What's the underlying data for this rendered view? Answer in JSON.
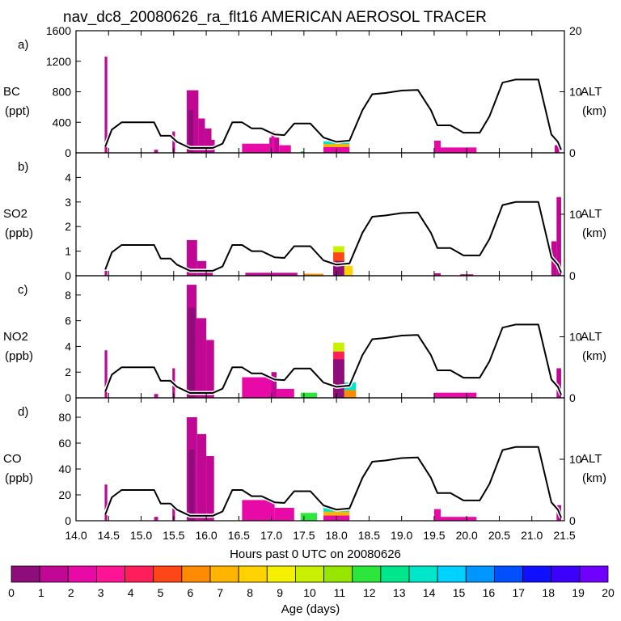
{
  "chart_data": {
    "type": "bar",
    "title": "nav_dc8_20080626_ra_flt16 AMERICAN AEROSOL TRACER",
    "xlabel": "Hours past 0 UTC on 20080626",
    "xlim": [
      14.0,
      21.5
    ],
    "xticks": [
      "14.0",
      "14.5",
      "15.0",
      "15.5",
      "16.0",
      "16.5",
      "17.0",
      "17.5",
      "18.0",
      "18.5",
      "19.0",
      "19.5",
      "20.0",
      "20.5",
      "21.0",
      "21.5"
    ],
    "altitude_axis": {
      "label": "ALT",
      "units": "(km)",
      "range": [
        0,
        20
      ],
      "ticks": [
        "0",
        "10",
        "20"
      ]
    },
    "altitude_km": [
      [
        14.45,
        1
      ],
      [
        14.55,
        3.8
      ],
      [
        14.7,
        5
      ],
      [
        15.2,
        5
      ],
      [
        15.3,
        2.8
      ],
      [
        15.45,
        2.8
      ],
      [
        15.55,
        1.8
      ],
      [
        15.75,
        0.8
      ],
      [
        16.1,
        0.8
      ],
      [
        16.25,
        1.5
      ],
      [
        16.4,
        5
      ],
      [
        16.55,
        5
      ],
      [
        16.7,
        4
      ],
      [
        16.85,
        4
      ],
      [
        17.05,
        3
      ],
      [
        17.2,
        2.9
      ],
      [
        17.35,
        4.8
      ],
      [
        17.6,
        4.8
      ],
      [
        17.8,
        2.5
      ],
      [
        18.0,
        1.8
      ],
      [
        18.2,
        2
      ],
      [
        18.4,
        7
      ],
      [
        18.55,
        9.6
      ],
      [
        18.75,
        9.8
      ],
      [
        19.0,
        10.2
      ],
      [
        19.25,
        10.3
      ],
      [
        19.45,
        7
      ],
      [
        19.55,
        4.5
      ],
      [
        19.75,
        4.5
      ],
      [
        19.95,
        3.3
      ],
      [
        20.2,
        3.3
      ],
      [
        20.35,
        6
      ],
      [
        20.55,
        11.5
      ],
      [
        20.75,
        12
      ],
      [
        21.1,
        12
      ],
      [
        21.3,
        3
      ],
      [
        21.4,
        1.8
      ],
      [
        21.45,
        0.5
      ]
    ],
    "colorbar": {
      "label": "Age (days)",
      "ticks": [
        "0",
        "1",
        "2",
        "3",
        "4",
        "5",
        "6",
        "7",
        "8",
        "9",
        "10",
        "11",
        "12",
        "13",
        "14",
        "15",
        "16",
        "17",
        "18",
        "19",
        "20"
      ],
      "colors": [
        "#8e0d7a",
        "#c00895",
        "#e80aa6",
        "#ff1493",
        "#ff1e5a",
        "#ff4616",
        "#ff8c00",
        "#ffb400",
        "#ffd200",
        "#f4f000",
        "#c8f000",
        "#96e600",
        "#2ce63c",
        "#00e68c",
        "#00e6c8",
        "#00d2ff",
        "#0096ff",
        "#0050ff",
        "#1010ff",
        "#3c00ff",
        "#7000ff"
      ]
    },
    "panels": [
      {
        "letter": "a)",
        "species": "BC",
        "units": "(ppt)",
        "ylim": [
          0,
          1600
        ],
        "yticks": [
          "0",
          "400",
          "800",
          "1200",
          "1600"
        ],
        "bars": [
          {
            "x0": 14.44,
            "x1": 14.48,
            "v": 1260,
            "c": 1
          },
          {
            "x0": 15.2,
            "x1": 15.26,
            "v": 40,
            "c": 1
          },
          {
            "x0": 15.48,
            "x1": 15.52,
            "v": 280,
            "c": 1
          },
          {
            "x0": 15.7,
            "x1": 15.88,
            "v": 820,
            "c": 1
          },
          {
            "x0": 15.73,
            "x1": 15.8,
            "v": 560,
            "c": 0
          },
          {
            "x0": 15.88,
            "x1": 15.98,
            "v": 450,
            "c": 1
          },
          {
            "x0": 15.98,
            "x1": 16.08,
            "v": 320,
            "c": 1
          },
          {
            "x0": 16.08,
            "x1": 16.13,
            "v": 170,
            "c": 1
          },
          {
            "x0": 16.55,
            "x1": 16.97,
            "v": 120,
            "c": 2
          },
          {
            "x0": 16.97,
            "x1": 17.12,
            "v": 200,
            "c": 1
          },
          {
            "x0": 17.0,
            "x1": 17.05,
            "v": 280,
            "c": 2
          },
          {
            "x0": 17.12,
            "x1": 17.3,
            "v": 100,
            "c": 2
          },
          {
            "x0": 17.45,
            "x1": 17.5,
            "v": 20,
            "c": 12
          },
          {
            "x0": 17.8,
            "x1": 18.2,
            "v": 150,
            "c": 14
          },
          {
            "x0": 17.8,
            "x1": 18.2,
            "v": 115,
            "c": 7
          },
          {
            "x0": 17.8,
            "x1": 18.2,
            "v": 75,
            "c": 2
          },
          {
            "x0": 19.5,
            "x1": 19.6,
            "v": 160,
            "c": 2
          },
          {
            "x0": 19.6,
            "x1": 20.15,
            "v": 70,
            "c": 2
          },
          {
            "x0": 21.35,
            "x1": 21.42,
            "v": 100,
            "c": 1
          }
        ]
      },
      {
        "letter": "b)",
        "species": "SO2",
        "units": "(ppb)",
        "ylim": [
          0,
          5
        ],
        "yticks": [
          "0",
          "1",
          "2",
          "3",
          "4"
        ],
        "bars": [
          {
            "x0": 14.44,
            "x1": 14.48,
            "v": 0.2,
            "c": 1
          },
          {
            "x0": 15.7,
            "x1": 15.86,
            "v": 1.45,
            "c": 1
          },
          {
            "x0": 15.86,
            "x1": 16.0,
            "v": 0.6,
            "c": 1
          },
          {
            "x0": 16.0,
            "x1": 16.1,
            "v": 0.25,
            "c": 1
          },
          {
            "x0": 16.6,
            "x1": 17.4,
            "v": 0.12,
            "c": 1
          },
          {
            "x0": 17.5,
            "x1": 17.8,
            "v": 0.08,
            "c": 6
          },
          {
            "x0": 17.95,
            "x1": 18.12,
            "v": 1.2,
            "c": 10
          },
          {
            "x0": 17.95,
            "x1": 18.12,
            "v": 0.95,
            "c": 5
          },
          {
            "x0": 17.95,
            "x1": 18.12,
            "v": 0.6,
            "c": 0
          },
          {
            "x0": 18.12,
            "x1": 18.25,
            "v": 0.4,
            "c": 8
          },
          {
            "x0": 19.5,
            "x1": 19.6,
            "v": 0.1,
            "c": 1
          },
          {
            "x0": 19.9,
            "x1": 20.1,
            "v": 0.06,
            "c": 1
          },
          {
            "x0": 21.38,
            "x1": 21.45,
            "v": 3.2,
            "c": 1
          },
          {
            "x0": 21.3,
            "x1": 21.38,
            "v": 1.4,
            "c": 1
          }
        ]
      },
      {
        "letter": "c)",
        "species": "NO2",
        "units": "(ppb)",
        "ylim": [
          0,
          9.5
        ],
        "yticks": [
          "0",
          "2",
          "4",
          "6",
          "8"
        ],
        "bars": [
          {
            "x0": 14.44,
            "x1": 14.48,
            "v": 3.7,
            "c": 1
          },
          {
            "x0": 15.2,
            "x1": 15.26,
            "v": 0.3,
            "c": 1
          },
          {
            "x0": 15.48,
            "x1": 15.52,
            "v": 2.3,
            "c": 1
          },
          {
            "x0": 15.7,
            "x1": 15.85,
            "v": 8.8,
            "c": 1
          },
          {
            "x0": 15.72,
            "x1": 15.83,
            "v": 7.0,
            "c": 0
          },
          {
            "x0": 15.85,
            "x1": 16.0,
            "v": 6.2,
            "c": 1
          },
          {
            "x0": 16.0,
            "x1": 16.12,
            "v": 4.5,
            "c": 1
          },
          {
            "x0": 16.55,
            "x1": 17.05,
            "v": 1.6,
            "c": 2
          },
          {
            "x0": 17.0,
            "x1": 17.08,
            "v": 2.0,
            "c": 1
          },
          {
            "x0": 17.08,
            "x1": 17.35,
            "v": 0.7,
            "c": 2
          },
          {
            "x0": 17.45,
            "x1": 17.7,
            "v": 0.4,
            "c": 12
          },
          {
            "x0": 17.95,
            "x1": 18.12,
            "v": 4.3,
            "c": 10
          },
          {
            "x0": 17.95,
            "x1": 18.12,
            "v": 3.6,
            "c": 4
          },
          {
            "x0": 17.95,
            "x1": 18.12,
            "v": 3.0,
            "c": 0
          },
          {
            "x0": 18.12,
            "x1": 18.3,
            "v": 1.2,
            "c": 14
          },
          {
            "x0": 18.12,
            "x1": 18.3,
            "v": 0.6,
            "c": 6
          },
          {
            "x0": 19.5,
            "x1": 20.15,
            "v": 0.4,
            "c": 2
          },
          {
            "x0": 21.38,
            "x1": 21.45,
            "v": 2.3,
            "c": 1
          }
        ]
      },
      {
        "letter": "d)",
        "species": "CO",
        "units": "(ppb)",
        "ylim": [
          0,
          95
        ],
        "yticks": [
          "0",
          "20",
          "40",
          "60",
          "80"
        ],
        "bars": [
          {
            "x0": 14.44,
            "x1": 14.48,
            "v": 28,
            "c": 1
          },
          {
            "x0": 15.2,
            "x1": 15.26,
            "v": 3,
            "c": 1
          },
          {
            "x0": 15.48,
            "x1": 15.52,
            "v": 12,
            "c": 1
          },
          {
            "x0": 15.7,
            "x1": 15.86,
            "v": 80,
            "c": 1
          },
          {
            "x0": 15.73,
            "x1": 15.82,
            "v": 55,
            "c": 0
          },
          {
            "x0": 15.86,
            "x1": 16.0,
            "v": 67,
            "c": 1
          },
          {
            "x0": 16.0,
            "x1": 16.12,
            "v": 50,
            "c": 1
          },
          {
            "x0": 16.55,
            "x1": 17.05,
            "v": 16,
            "c": 2
          },
          {
            "x0": 17.05,
            "x1": 17.35,
            "v": 10,
            "c": 2
          },
          {
            "x0": 17.45,
            "x1": 17.7,
            "v": 6,
            "c": 12
          },
          {
            "x0": 17.8,
            "x1": 18.2,
            "v": 10,
            "c": 14
          },
          {
            "x0": 17.8,
            "x1": 18.2,
            "v": 7,
            "c": 7
          },
          {
            "x0": 17.8,
            "x1": 18.2,
            "v": 4,
            "c": 2
          },
          {
            "x0": 19.5,
            "x1": 19.6,
            "v": 9,
            "c": 2
          },
          {
            "x0": 19.6,
            "x1": 20.15,
            "v": 3,
            "c": 2
          },
          {
            "x0": 21.38,
            "x1": 21.45,
            "v": 12,
            "c": 1
          }
        ]
      }
    ]
  }
}
